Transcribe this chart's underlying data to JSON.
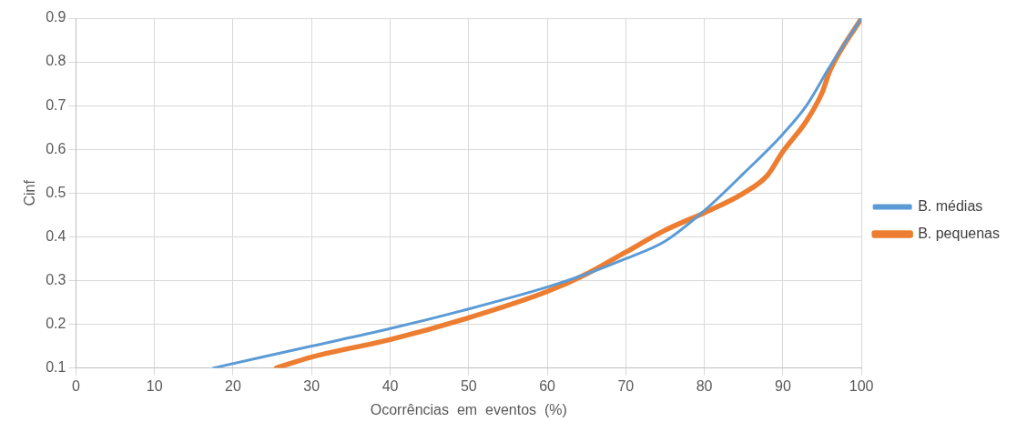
{
  "chart_data": {
    "type": "line",
    "xlabel": "Ocorrências  em  eventos  (%)",
    "ylabel": "Cinf",
    "xlim": [
      0,
      100
    ],
    "xticks": [
      0,
      10,
      20,
      30,
      40,
      50,
      60,
      70,
      80,
      90,
      100
    ],
    "ylim": [
      0.1,
      0.9
    ],
    "yticks": [
      0.1,
      0.2,
      0.3,
      0.4,
      0.5,
      0.6,
      0.7,
      0.8,
      0.9
    ],
    "grid": true,
    "legend": "right",
    "marker": "none",
    "line_style": "solid",
    "series": [
      {
        "name": "B. médias",
        "color": "#5b9bd5",
        "x": [
          17.5,
          30,
          40,
          50,
          60,
          65,
          70,
          75,
          80,
          85,
          90,
          93,
          96,
          100
        ],
        "values": [
          0.1,
          0.15,
          0.19,
          0.235,
          0.285,
          0.315,
          0.35,
          0.39,
          0.46,
          0.545,
          0.635,
          0.7,
          0.79,
          0.9
        ]
      },
      {
        "name": "B. pequenas",
        "color": "#ed7d31",
        "x": [
          25.5,
          30,
          40,
          50,
          60,
          65,
          70,
          75,
          80,
          85,
          88,
          90,
          93,
          95,
          96,
          100
        ],
        "values": [
          0.1,
          0.125,
          0.165,
          0.215,
          0.275,
          0.315,
          0.365,
          0.415,
          0.455,
          0.5,
          0.54,
          0.595,
          0.665,
          0.73,
          0.78,
          0.9
        ]
      }
    ]
  }
}
